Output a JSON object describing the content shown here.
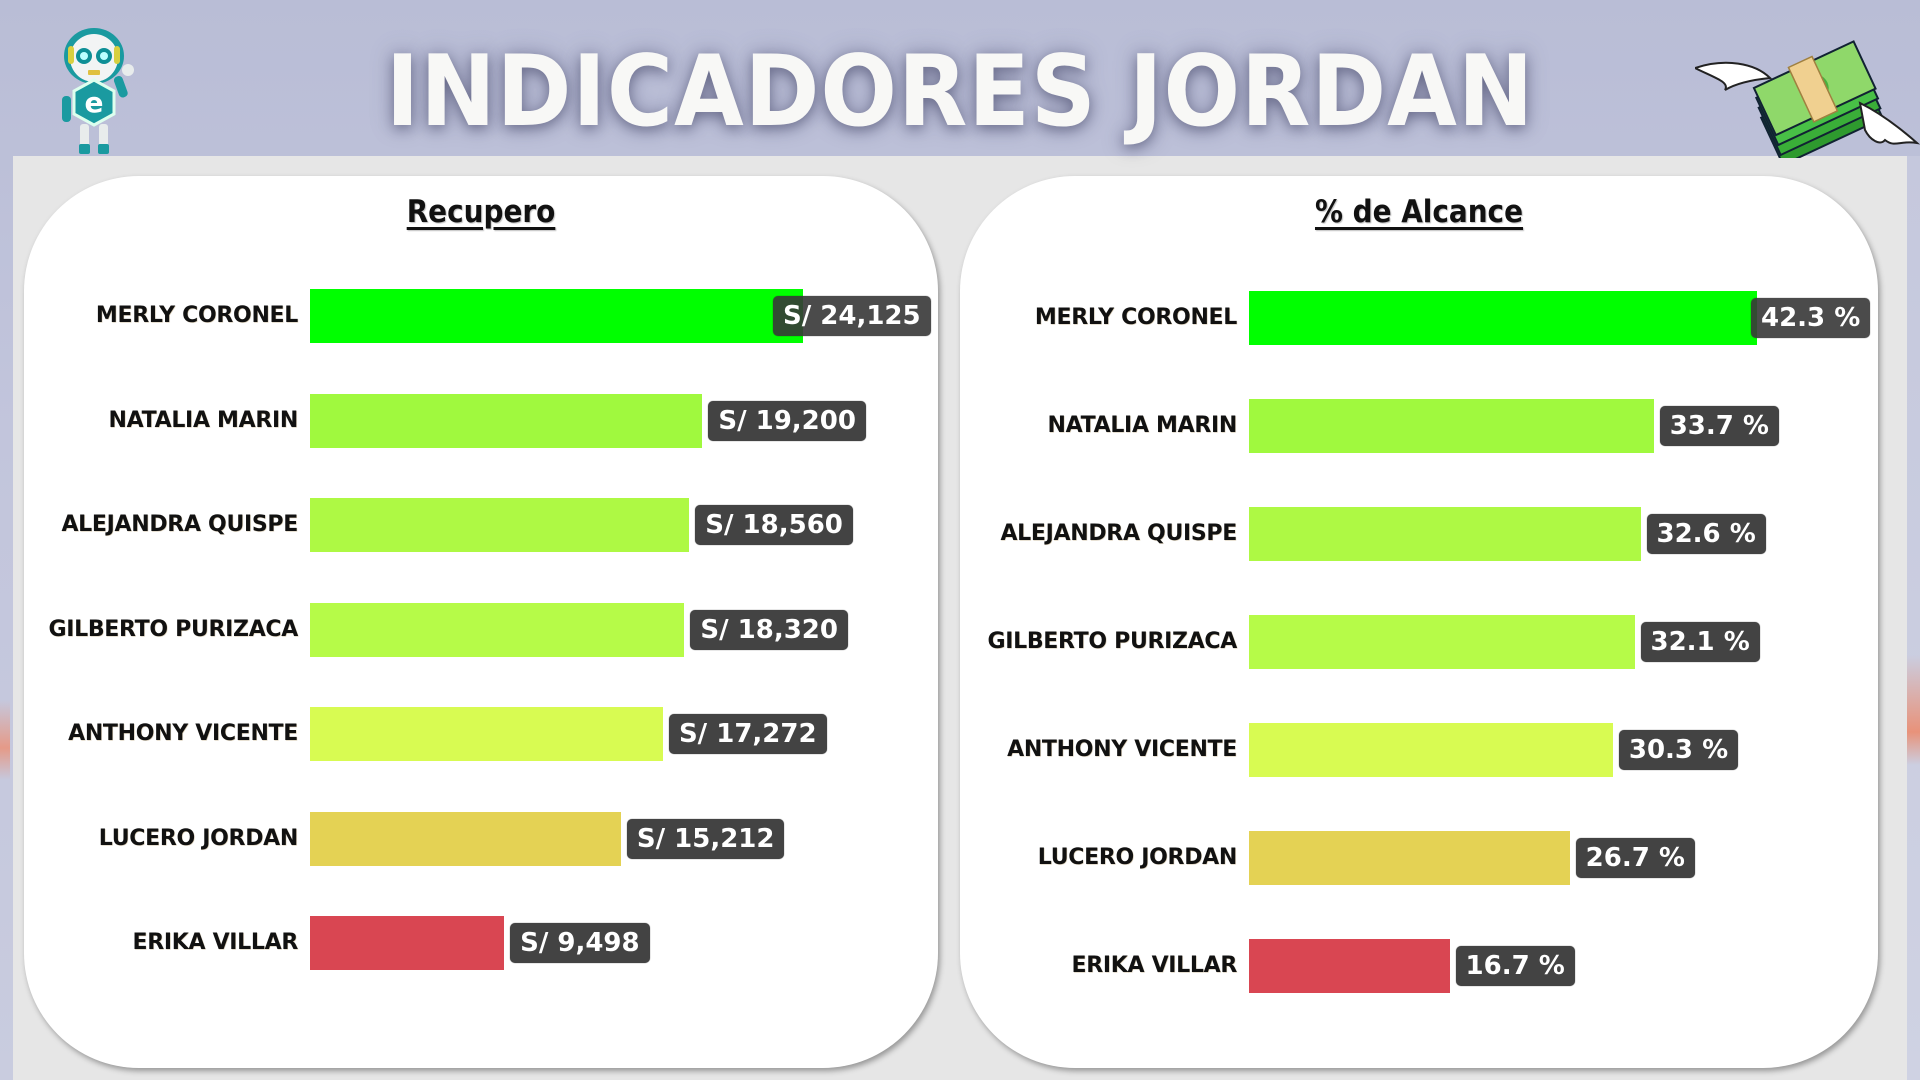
{
  "header": {
    "title": "INDICADORES JORDAN",
    "left_icon": "robot-mascot-icon",
    "right_icon": "flying-money-icon"
  },
  "colors": {
    "background": "#c2c5dc",
    "panel": "#e6e6e6",
    "card": "#ffffff",
    "label_box": "#434343",
    "label_text": "#ffffff",
    "title_text": "#f8f8f6"
  },
  "charts": {
    "recupero": {
      "title": "Recupero",
      "rows": [
        {
          "name": "MERLY CORONEL",
          "label": "S/ 24,125",
          "color": "#00ff00"
        },
        {
          "name": "NATALIA MARIN",
          "label": "S/ 19,200",
          "color": "#a0f93e"
        },
        {
          "name": "ALEJANDRA QUISPE",
          "label": "S/ 18,560",
          "color": "#aef944"
        },
        {
          "name": "GILBERTO PURIZACA",
          "label": "S/ 18,320",
          "color": "#b6fb48"
        },
        {
          "name": "ANTHONY VICENTE",
          "label": "S/ 17,272",
          "color": "#d8fb52"
        },
        {
          "name": "LUCERO JORDAN",
          "label": "S/ 15,212",
          "color": "#e4d254"
        },
        {
          "name": "ERIKA VILLAR",
          "label": "S/ 9,498",
          "color": "#d94652"
        }
      ]
    },
    "alcance": {
      "title": "% de Alcance",
      "rows": [
        {
          "name": "MERLY CORONEL",
          "label": "42.3 %",
          "color": "#00ff00"
        },
        {
          "name": "NATALIA MARIN",
          "label": "33.7 %",
          "color": "#a0f93e"
        },
        {
          "name": "ALEJANDRA QUISPE",
          "label": "32.6 %",
          "color": "#aef944"
        },
        {
          "name": "GILBERTO PURIZACA",
          "label": "32.1 %",
          "color": "#b6fb48"
        },
        {
          "name": "ANTHONY VICENTE",
          "label": "30.3 %",
          "color": "#d8fb52"
        },
        {
          "name": "LUCERO JORDAN",
          "label": "26.7 %",
          "color": "#e4d254"
        },
        {
          "name": "ERIKA VILLAR",
          "label": "16.7 %",
          "color": "#d94652"
        }
      ]
    }
  },
  "chart_data": [
    {
      "type": "bar",
      "orientation": "horizontal",
      "title": "Recupero",
      "xlabel": "",
      "ylabel": "",
      "categories": [
        "MERLY CORONEL",
        "NATALIA MARIN",
        "ALEJANDRA QUISPE",
        "GILBERTO PURIZACA",
        "ANTHONY VICENTE",
        "LUCERO JORDAN",
        "ERIKA VILLAR"
      ],
      "values": [
        24125,
        19200,
        18560,
        18320,
        17272,
        15212,
        9498
      ],
      "value_prefix": "S/ ",
      "grid": false,
      "legend": "none",
      "bar_colors": [
        "#00ff00",
        "#a0f93e",
        "#aef944",
        "#b6fb48",
        "#d8fb52",
        "#e4d254",
        "#d94652"
      ]
    },
    {
      "type": "bar",
      "orientation": "horizontal",
      "title": "% de Alcance",
      "xlabel": "",
      "ylabel": "",
      "categories": [
        "MERLY CORONEL",
        "NATALIA MARIN",
        "ALEJANDRA QUISPE",
        "GILBERTO PURIZACA",
        "ANTHONY VICENTE",
        "LUCERO JORDAN",
        "ERIKA VILLAR"
      ],
      "values": [
        42.3,
        33.7,
        32.6,
        32.1,
        30.3,
        26.7,
        16.7
      ],
      "value_suffix": " %",
      "grid": false,
      "legend": "none",
      "bar_colors": [
        "#00ff00",
        "#a0f93e",
        "#aef944",
        "#b6fb48",
        "#d8fb52",
        "#e4d254",
        "#d94652"
      ]
    }
  ]
}
